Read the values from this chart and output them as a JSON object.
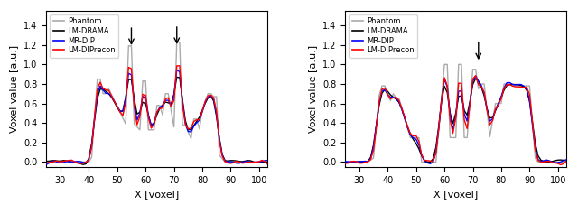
{
  "xlim": [
    25,
    103
  ],
  "ylim": [
    -0.05,
    1.55
  ],
  "xlabel": "X [voxel]",
  "ylabel": "Voxel value [a.u.]",
  "legend_labels": [
    "Phantom",
    "LM-DRAMA",
    "MR-DIP",
    "LM-DIPrecon"
  ],
  "legend_colors": [
    "#aaaaaa",
    "#000000",
    "#0000ff",
    "#ff0000"
  ],
  "title_fontsize": 8,
  "tick_fontsize": 7,
  "label_fontsize": 8
}
